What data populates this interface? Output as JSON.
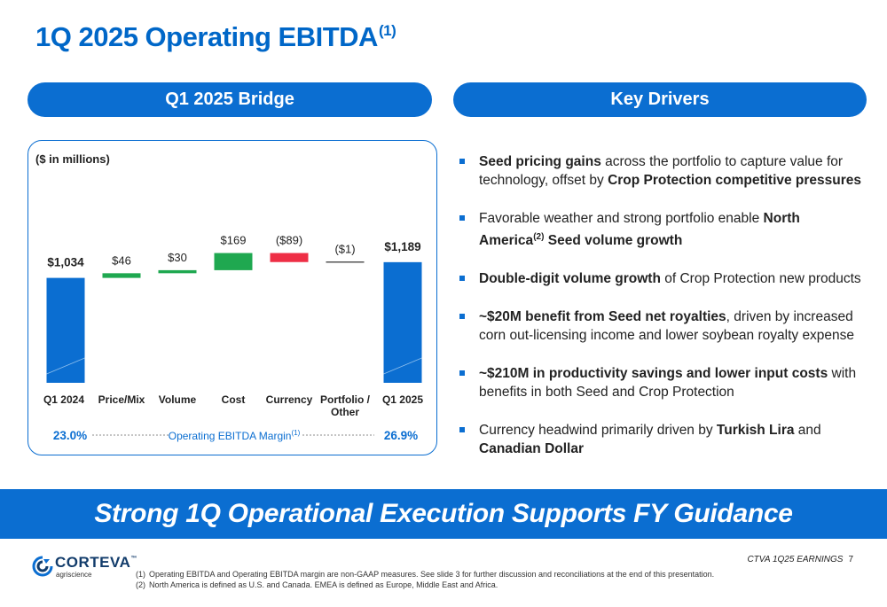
{
  "title": {
    "text": "1Q 2025 Operating EBITDA",
    "sup": "(1)"
  },
  "left_header": "Q1 2025 Bridge",
  "right_header": "Key Drivers",
  "chart_data": {
    "type": "bar",
    "subtype": "waterfall",
    "unit_label": "($ in millions)",
    "categories": [
      "Q1 2024",
      "Price/Mix",
      "Volume",
      "Cost",
      "Currency",
      "Portfolio / Other",
      "Q1 2025"
    ],
    "category_lines": [
      [
        "Q1 2024"
      ],
      [
        "Price/Mix"
      ],
      [
        "Volume"
      ],
      [
        "Cost"
      ],
      [
        "Currency"
      ],
      [
        "Portfolio /",
        "Other"
      ],
      [
        "Q1 2025"
      ]
    ],
    "values": [
      1034,
      46,
      30,
      169,
      -89,
      -1,
      1189
    ],
    "kinds": [
      "total",
      "delta",
      "delta",
      "delta",
      "delta",
      "delta",
      "total"
    ],
    "labels": [
      "$1,034",
      "$46",
      "$30",
      "$169",
      "($89)",
      "($1)",
      "$1,189"
    ],
    "bold_labels": [
      true,
      false,
      false,
      false,
      false,
      false,
      true
    ],
    "colors": {
      "total": "#0b6ed1",
      "increase": "#1fa850",
      "decrease": "#ee2e45",
      "flat": "#555555"
    },
    "margin": {
      "start": "23.0%",
      "end": "26.9%",
      "label": "Operating EBITDA Margin",
      "label_sup": "(1)"
    }
  },
  "drivers": [
    {
      "parts": [
        {
          "t": "Seed pricing gains",
          "b": true
        },
        {
          "t": " across the portfolio to capture value for technology, offset by "
        },
        {
          "t": "Crop Protection competitive pressures",
          "b": true
        }
      ]
    },
    {
      "parts": [
        {
          "t": "Favorable weather and strong portfolio enable "
        },
        {
          "t": "North America",
          "b": true
        },
        {
          "t": "(2)",
          "b": true,
          "sup": true
        },
        {
          "t": " "
        },
        {
          "t": "Seed volume growth",
          "b": true
        }
      ]
    },
    {
      "parts": [
        {
          "t": "Double-digit volume growth",
          "b": true
        },
        {
          "t": " of Crop Protection new products"
        }
      ]
    },
    {
      "parts": [
        {
          "t": "~$20M benefit from Seed net royalties",
          "b": true
        },
        {
          "t": ", driven by increased corn out-licensing income and lower soybean royalty expense"
        }
      ]
    },
    {
      "parts": [
        {
          "t": "~$210M in productivity savings and lower input costs",
          "b": true
        },
        {
          "t": " with benefits in both Seed and Crop Protection"
        }
      ]
    },
    {
      "parts": [
        {
          "t": "Currency headwind primarily driven by "
        },
        {
          "t": "Turkish Lira",
          "b": true
        },
        {
          "t": " and "
        },
        {
          "t": "Canadian Dollar",
          "b": true
        }
      ]
    }
  ],
  "banner": "Strong 1Q Operational Execution Supports FY Guidance",
  "logo": {
    "name": "CORTEVA",
    "tm": "™",
    "sub": "agriscience",
    "icon": "corteva-logo-icon"
  },
  "footnotes": [
    {
      "n": "(1)",
      "text": "Operating EBITDA and Operating EBITDA margin are non-GAAP measures. See slide 3 for further discussion and reconciliations at the end of this presentation."
    },
    {
      "n": "(2)",
      "text": "North America is defined as U.S. and Canada. EMEA is defined as Europe, Middle East and Africa."
    }
  ],
  "page": {
    "label": "CTVA 1Q25 EARNINGS",
    "number": "7"
  }
}
